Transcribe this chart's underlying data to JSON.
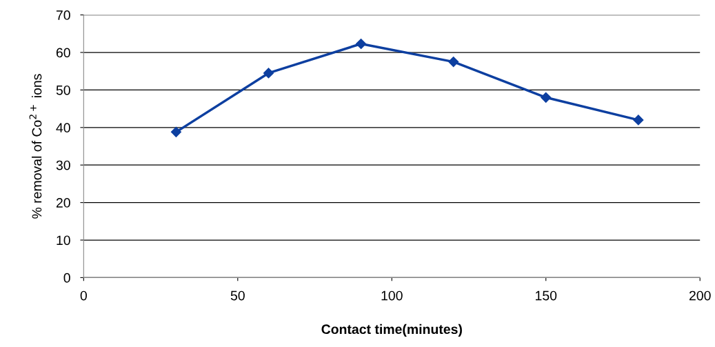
{
  "chart_data": {
    "type": "line",
    "xlabel": "Contact time(minutes)",
    "ylabel": "% removal of Co$^{2+}$ ions",
    "x": [
      30,
      60,
      90,
      120,
      150,
      180
    ],
    "series": [
      {
        "color": "#0d3fa0",
        "values": [
          38.8,
          54.5,
          62.3,
          57.5,
          48.0,
          42.0
        ]
      }
    ],
    "xlim": [
      0,
      200
    ],
    "xticks": [
      0,
      50,
      100,
      150,
      200
    ],
    "ylim": [
      0,
      70
    ],
    "yticks": [
      0,
      10,
      20,
      30,
      40,
      50,
      60,
      70
    ],
    "grid": "y",
    "marker": "diamond",
    "line_style": "solid"
  }
}
